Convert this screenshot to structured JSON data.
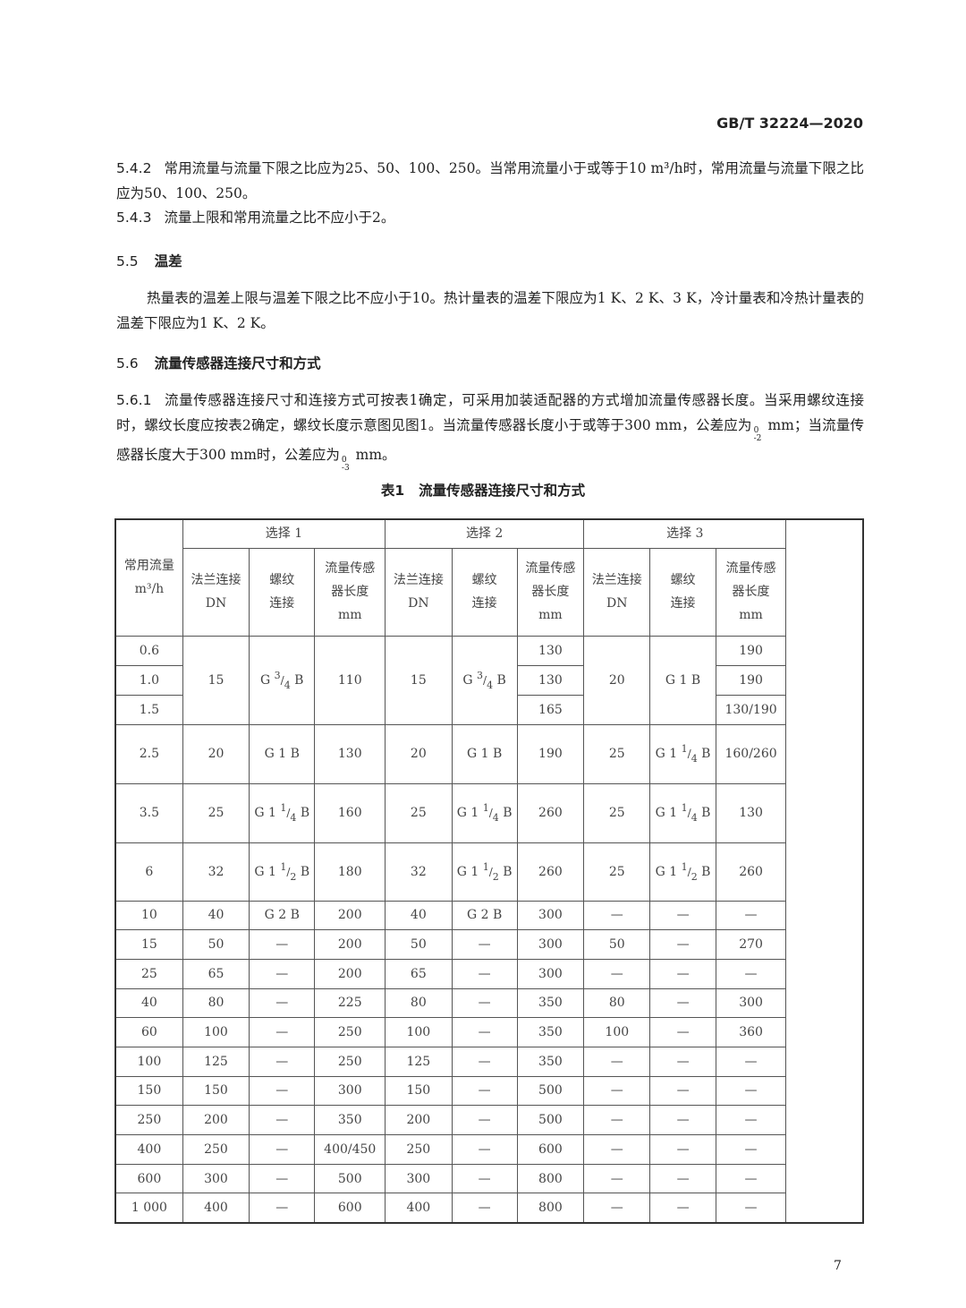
{
  "header": {
    "standard": "GB/T 32224—2020"
  },
  "sections": {
    "s542": {
      "num": "5.4.2",
      "text": "常用流量与流量下限之比应为25、50、100、250。当常用流量小于或等于10 m³/h时，常用流量与流量下限之比应为50、100、250。"
    },
    "s543": {
      "num": "5.4.3",
      "text": "流量上限和常用流量之比不应小于2。"
    },
    "s55": {
      "num": "5.5",
      "title": "温差"
    },
    "s55_text": "热量表的温差上限与温差下限之比不应小于10。热计量表的温差下限应为1 K、2 K、3 K，冷计量表和冷热计量表的温差下限应为1 K、2 K。",
    "s56": {
      "num": "5.6",
      "title": "流量传感器连接尺寸和方式"
    },
    "s561": {
      "num": "5.6.1",
      "text_a": "流量传感器连接尺寸和连接方式可按表1确定，可采用加装适配器的方式增加流量传感器长度。当采用螺纹连接时，螺纹长度应按表2确定，螺纹长度示意图见图1。当流量传感器长度小于或等于300 mm，公差应为",
      "tol1_upper": "0",
      "tol1_lower": "-2",
      "text_b": " mm；当流量传感器长度大于300 mm时，公差应为",
      "tol2_upper": "0",
      "tol2_lower": "-3",
      "text_c": " mm。"
    }
  },
  "table": {
    "caption_num": "表1",
    "caption_title": "流量传感器连接尺寸和方式",
    "flow_header": "常用流量",
    "flow_unit": "m³/h",
    "groups": [
      "选择 1",
      "选择 2",
      "选择 3"
    ],
    "sub_headers": [
      [
        "法兰连接",
        "DN"
      ],
      [
        "螺纹",
        "连接"
      ],
      [
        "流量传感",
        "器长度",
        "mm"
      ]
    ],
    "rows": [
      [
        "0.6",
        "15",
        "G 3/4 B",
        "110",
        "15",
        "G 3/4 B",
        "130",
        "20",
        "G 1 B",
        "190"
      ],
      [
        "1.0",
        null,
        null,
        null,
        null,
        null,
        "130",
        null,
        null,
        "190"
      ],
      [
        "1.5",
        null,
        null,
        null,
        null,
        null,
        "165",
        null,
        null,
        "130/190"
      ],
      [
        "2.5",
        "20",
        "G 1 B",
        "130",
        "20",
        "G 1 B",
        "190",
        "25",
        "G 1 1/4 B",
        "160/260"
      ],
      [
        "3.5",
        "25",
        "G 1 1/4 B",
        "160",
        "25",
        "G 1 1/4 B",
        "260",
        "25",
        "G 1 1/4 B",
        "130"
      ],
      [
        "6",
        "32",
        "G 1 1/2 B",
        "180",
        "32",
        "G 1 1/2 B",
        "260",
        "25",
        "G 1 1/2 B",
        "260"
      ],
      [
        "10",
        "40",
        "G 2 B",
        "200",
        "40",
        "G 2 B",
        "300",
        "—",
        "—",
        "—"
      ],
      [
        "15",
        "50",
        "—",
        "200",
        "50",
        "—",
        "300",
        "50",
        "—",
        "270"
      ],
      [
        "25",
        "65",
        "—",
        "200",
        "65",
        "—",
        "300",
        "—",
        "—",
        "—"
      ],
      [
        "40",
        "80",
        "—",
        "225",
        "80",
        "—",
        "350",
        "80",
        "—",
        "300"
      ],
      [
        "60",
        "100",
        "—",
        "250",
        "100",
        "—",
        "350",
        "100",
        "—",
        "360"
      ],
      [
        "100",
        "125",
        "—",
        "250",
        "125",
        "—",
        "350",
        "—",
        "—",
        "—"
      ],
      [
        "150",
        "150",
        "—",
        "300",
        "150",
        "—",
        "500",
        "—",
        "—",
        "—"
      ],
      [
        "250",
        "200",
        "—",
        "350",
        "200",
        "—",
        "500",
        "—",
        "—",
        "—"
      ],
      [
        "400",
        "250",
        "—",
        "400/450",
        "250",
        "—",
        "600",
        "—",
        "—",
        "—"
      ],
      [
        "600",
        "300",
        "—",
        "500",
        "300",
        "—",
        "800",
        "—",
        "—",
        "—"
      ],
      [
        "1 000",
        "400",
        "—",
        "600",
        "400",
        "—",
        "800",
        "—",
        "—",
        "—"
      ]
    ]
  },
  "page_number": "7"
}
